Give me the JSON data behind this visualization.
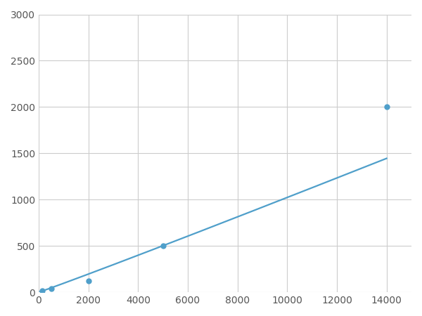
{
  "x_data": [
    156,
    500,
    2000,
    5000,
    14000
  ],
  "y_data": [
    20,
    40,
    120,
    500,
    2000
  ],
  "line_color": "#4f9fca",
  "marker_color": "#4f9fca",
  "marker_size": 5,
  "line_width": 1.6,
  "xlim": [
    0,
    15000
  ],
  "ylim": [
    0,
    3000
  ],
  "xticks": [
    0,
    2000,
    4000,
    6000,
    8000,
    10000,
    12000,
    14000
  ],
  "yticks": [
    0,
    500,
    1000,
    1500,
    2000,
    2500,
    3000
  ],
  "grid_color": "#cccccc",
  "background_color": "#ffffff",
  "tick_label_color": "#555555",
  "tick_fontsize": 10
}
